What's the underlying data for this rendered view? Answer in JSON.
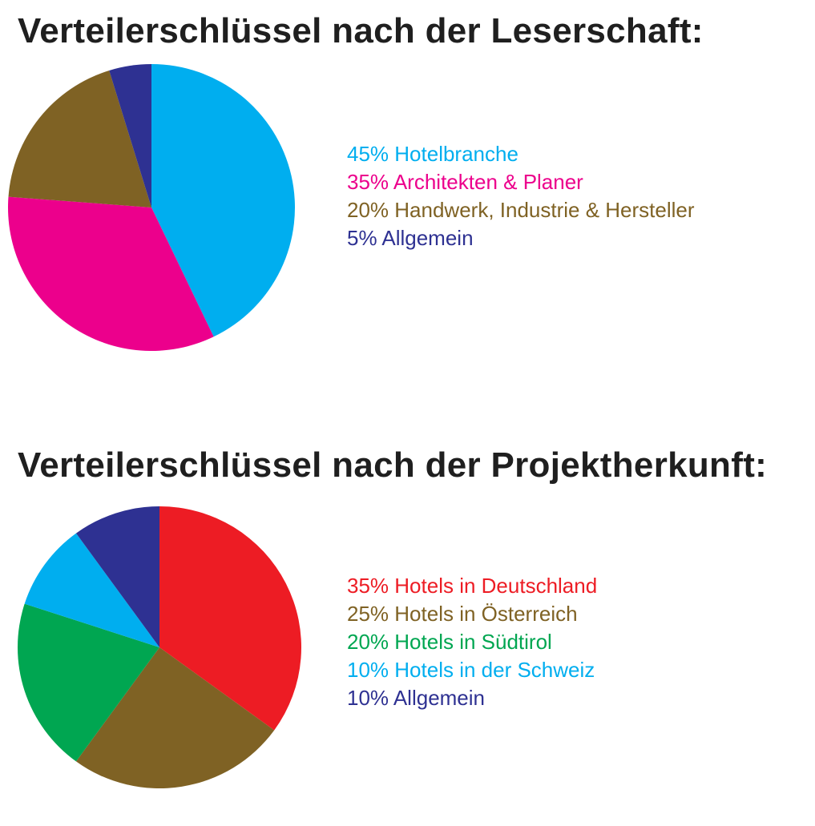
{
  "chart_data": [
    {
      "type": "pie",
      "title": "Verteilerschlüssel nach der Leserschaft:",
      "slices": [
        {
          "label": "Hotelbranche",
          "value": 45,
          "value_label": "45%",
          "color": "#00AEEF"
        },
        {
          "label": "Architekten & Planer",
          "value": 35,
          "value_label": "35%",
          "color": "#EC008C"
        },
        {
          "label": "Handwerk, Industrie & Hersteller",
          "value": 20,
          "value_label": "20%",
          "color": "#7F6224"
        },
        {
          "label": "Allgemein",
          "value": 5,
          "value_label": "5%",
          "color": "#2E3192"
        }
      ],
      "legend_position": "right"
    },
    {
      "type": "pie",
      "title": "Verteilerschlüssel nach der Projektherkunft:",
      "slices": [
        {
          "label": "Hotels in Deutschland",
          "value": 35,
          "value_label": "35%",
          "color": "#ED1C24"
        },
        {
          "label": "Hotels in Österreich",
          "value": 25,
          "value_label": "25%",
          "color": "#7F6224"
        },
        {
          "label": "Hotels in Südtirol",
          "value": 20,
          "value_label": "20%",
          "color": "#00A651"
        },
        {
          "label": "Hotels in der Schweiz",
          "value": 10,
          "value_label": "10%",
          "color": "#00AEEF"
        },
        {
          "label": "Allgemein",
          "value": 10,
          "value_label": "10%",
          "color": "#2E3192"
        }
      ],
      "legend_position": "right"
    }
  ]
}
